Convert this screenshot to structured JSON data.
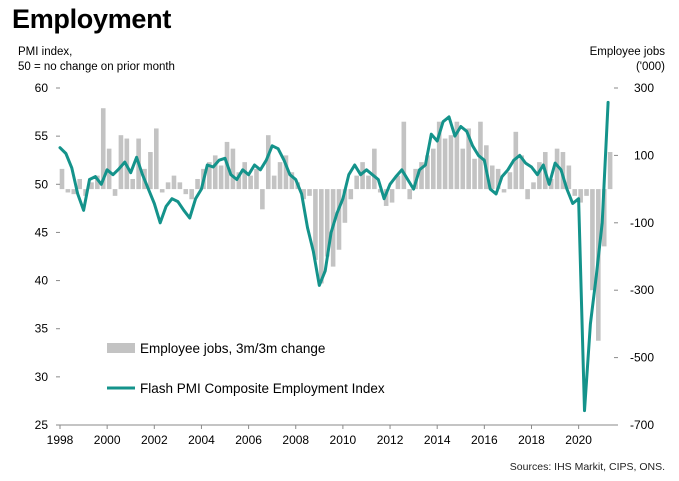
{
  "title": "Employment",
  "left_axis_label": [
    "PMI index,",
    "50 = no change on prior month"
  ],
  "right_axis_label": [
    "Employee jobs",
    "('000)"
  ],
  "source": "Sources: IHS Markit, CIPS, ONS.",
  "colors": {
    "line": "#14938b",
    "bars": "#c3c3c3",
    "axis": "#8a8a8a"
  },
  "chart_data": {
    "type": "bar+line",
    "x_ticks": [
      1998,
      2000,
      2002,
      2004,
      2006,
      2008,
      2010,
      2012,
      2014,
      2016,
      2018,
      2020
    ],
    "left_axis": {
      "min": 25,
      "max": 60,
      "ticks": [
        25,
        30,
        35,
        40,
        45,
        50,
        55,
        60
      ]
    },
    "right_axis": {
      "min": -700,
      "max": 300,
      "ticks": [
        -700,
        -500,
        -300,
        -100,
        100,
        300
      ]
    },
    "x_range": [
      1998,
      2021.5
    ],
    "legend": [
      {
        "label": "Employee jobs, 3m/3m change",
        "kind": "bar"
      },
      {
        "label": "Flash PMI Composite Employment Index",
        "kind": "line"
      }
    ],
    "series": [
      {
        "name": "Employee jobs, 3m/3m change",
        "axis": "right",
        "type": "bar",
        "points": [
          [
            1998.0,
            60
          ],
          [
            1998.25,
            -10
          ],
          [
            1998.5,
            -15
          ],
          [
            1998.75,
            30
          ],
          [
            1999.0,
            -20
          ],
          [
            1999.25,
            20
          ],
          [
            1999.5,
            40
          ],
          [
            1999.75,
            240
          ],
          [
            2000.0,
            120
          ],
          [
            2000.25,
            -20
          ],
          [
            2000.5,
            160
          ],
          [
            2000.75,
            150
          ],
          [
            2001.0,
            30
          ],
          [
            2001.25,
            150
          ],
          [
            2001.5,
            60
          ],
          [
            2001.75,
            110
          ],
          [
            2002.0,
            180
          ],
          [
            2002.25,
            -10
          ],
          [
            2002.5,
            20
          ],
          [
            2002.75,
            40
          ],
          [
            2003.0,
            20
          ],
          [
            2003.25,
            -15
          ],
          [
            2003.5,
            -30
          ],
          [
            2003.75,
            30
          ],
          [
            2004.0,
            60
          ],
          [
            2004.25,
            80
          ],
          [
            2004.5,
            100
          ],
          [
            2004.75,
            70
          ],
          [
            2005.0,
            140
          ],
          [
            2005.25,
            120
          ],
          [
            2005.5,
            50
          ],
          [
            2005.75,
            80
          ],
          [
            2006.0,
            40
          ],
          [
            2006.25,
            60
          ],
          [
            2006.5,
            -60
          ],
          [
            2006.75,
            160
          ],
          [
            2007.0,
            40
          ],
          [
            2007.25,
            80
          ],
          [
            2007.5,
            100
          ],
          [
            2007.75,
            50
          ],
          [
            2008.0,
            20
          ],
          [
            2008.25,
            -30
          ],
          [
            2008.5,
            -20
          ],
          [
            2008.75,
            -210
          ],
          [
            2009.0,
            -280
          ],
          [
            2009.25,
            -200
          ],
          [
            2009.5,
            -230
          ],
          [
            2009.75,
            -180
          ],
          [
            2010.0,
            -100
          ],
          [
            2010.25,
            -30
          ],
          [
            2010.5,
            40
          ],
          [
            2010.75,
            80
          ],
          [
            2011.0,
            40
          ],
          [
            2011.25,
            120
          ],
          [
            2011.5,
            -10
          ],
          [
            2011.75,
            -50
          ],
          [
            2012.0,
            -40
          ],
          [
            2012.25,
            40
          ],
          [
            2012.5,
            200
          ],
          [
            2012.75,
            -30
          ],
          [
            2013.0,
            60
          ],
          [
            2013.25,
            80
          ],
          [
            2013.5,
            100
          ],
          [
            2013.75,
            120
          ],
          [
            2014.0,
            200
          ],
          [
            2014.25,
            150
          ],
          [
            2014.5,
            160
          ],
          [
            2014.75,
            200
          ],
          [
            2015.0,
            120
          ],
          [
            2015.25,
            180
          ],
          [
            2015.5,
            90
          ],
          [
            2015.75,
            200
          ],
          [
            2016.0,
            130
          ],
          [
            2016.25,
            70
          ],
          [
            2016.5,
            60
          ],
          [
            2016.75,
            -10
          ],
          [
            2017.0,
            50
          ],
          [
            2017.25,
            170
          ],
          [
            2017.5,
            100
          ],
          [
            2017.75,
            -30
          ],
          [
            2018.0,
            20
          ],
          [
            2018.25,
            80
          ],
          [
            2018.5,
            110
          ],
          [
            2018.75,
            30
          ],
          [
            2019.0,
            120
          ],
          [
            2019.25,
            110
          ],
          [
            2019.5,
            70
          ],
          [
            2019.75,
            -20
          ],
          [
            2020.0,
            -40
          ],
          [
            2020.25,
            -20
          ],
          [
            2020.5,
            -300
          ],
          [
            2020.75,
            -450
          ],
          [
            2021.0,
            -170
          ],
          [
            2021.25,
            110
          ]
        ]
      },
      {
        "name": "Flash PMI Composite Employment Index",
        "axis": "left",
        "type": "line",
        "points": [
          [
            1998.0,
            53.8
          ],
          [
            1998.25,
            53.2
          ],
          [
            1998.5,
            51.7
          ],
          [
            1998.75,
            49.0
          ],
          [
            1999.0,
            47.3
          ],
          [
            1999.25,
            50.5
          ],
          [
            1999.5,
            50.8
          ],
          [
            1999.75,
            50.0
          ],
          [
            2000.0,
            51.5
          ],
          [
            2000.25,
            51.0
          ],
          [
            2000.5,
            51.6
          ],
          [
            2000.75,
            52.3
          ],
          [
            2001.0,
            51.2
          ],
          [
            2001.25,
            52.8
          ],
          [
            2001.5,
            51.0
          ],
          [
            2001.75,
            49.5
          ],
          [
            2002.0,
            48.0
          ],
          [
            2002.25,
            46.0
          ],
          [
            2002.5,
            47.7
          ],
          [
            2002.75,
            48.5
          ],
          [
            2003.0,
            48.2
          ],
          [
            2003.25,
            47.3
          ],
          [
            2003.5,
            46.5
          ],
          [
            2003.75,
            48.5
          ],
          [
            2004.0,
            49.5
          ],
          [
            2004.25,
            52.0
          ],
          [
            2004.5,
            51.8
          ],
          [
            2004.75,
            52.5
          ],
          [
            2005.0,
            52.7
          ],
          [
            2005.25,
            51.0
          ],
          [
            2005.5,
            50.5
          ],
          [
            2005.75,
            51.5
          ],
          [
            2006.0,
            51.0
          ],
          [
            2006.25,
            52.0
          ],
          [
            2006.5,
            51.5
          ],
          [
            2006.75,
            52.5
          ],
          [
            2007.0,
            54.0
          ],
          [
            2007.25,
            53.7
          ],
          [
            2007.5,
            52.5
          ],
          [
            2007.75,
            51.0
          ],
          [
            2008.0,
            50.5
          ],
          [
            2008.25,
            49.0
          ],
          [
            2008.5,
            45.5
          ],
          [
            2008.75,
            43.0
          ],
          [
            2009.0,
            39.5
          ],
          [
            2009.25,
            41.0
          ],
          [
            2009.5,
            45.0
          ],
          [
            2009.75,
            47.0
          ],
          [
            2010.0,
            48.5
          ],
          [
            2010.25,
            51.0
          ],
          [
            2010.5,
            52.0
          ],
          [
            2010.75,
            51.0
          ],
          [
            2011.0,
            51.5
          ],
          [
            2011.25,
            51.0
          ],
          [
            2011.5,
            50.5
          ],
          [
            2011.75,
            48.5
          ],
          [
            2012.0,
            50.0
          ],
          [
            2012.25,
            50.8
          ],
          [
            2012.5,
            51.5
          ],
          [
            2012.75,
            50.5
          ],
          [
            2013.0,
            49.5
          ],
          [
            2013.25,
            51.5
          ],
          [
            2013.5,
            52.0
          ],
          [
            2013.75,
            55.2
          ],
          [
            2014.0,
            54.5
          ],
          [
            2014.25,
            56.5
          ],
          [
            2014.5,
            57.0
          ],
          [
            2014.75,
            55.0
          ],
          [
            2015.0,
            56.0
          ],
          [
            2015.25,
            55.5
          ],
          [
            2015.5,
            54.0
          ],
          [
            2015.75,
            53.0
          ],
          [
            2016.0,
            52.5
          ],
          [
            2016.25,
            49.5
          ],
          [
            2016.5,
            49.0
          ],
          [
            2016.75,
            50.8
          ],
          [
            2017.0,
            51.5
          ],
          [
            2017.25,
            52.5
          ],
          [
            2017.5,
            53.0
          ],
          [
            2017.75,
            52.2
          ],
          [
            2018.0,
            51.8
          ],
          [
            2018.25,
            51.0
          ],
          [
            2018.5,
            52.0
          ],
          [
            2018.75,
            50.0
          ],
          [
            2019.0,
            52.2
          ],
          [
            2019.25,
            51.5
          ],
          [
            2019.5,
            49.5
          ],
          [
            2019.75,
            48.0
          ],
          [
            2020.0,
            48.5
          ],
          [
            2020.25,
            26.5
          ],
          [
            2020.5,
            35.5
          ],
          [
            2020.75,
            40.5
          ],
          [
            2021.0,
            46.0
          ],
          [
            2021.25,
            58.5
          ]
        ]
      }
    ]
  }
}
